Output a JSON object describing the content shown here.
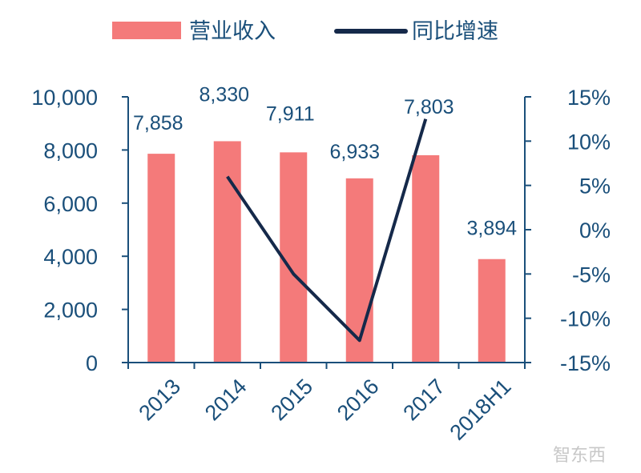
{
  "chart_data": {
    "type": "bar",
    "categories": [
      "2013",
      "2014",
      "2015",
      "2016",
      "2017",
      "2018H1"
    ],
    "series": [
      {
        "name": "营业收入",
        "type": "bar",
        "axis": "left",
        "values": [
          7858,
          8330,
          7911,
          6933,
          7803,
          3894
        ],
        "labels": [
          "7,858",
          "8,330",
          "7,911",
          "6,933",
          "7,803",
          "3,894"
        ]
      },
      {
        "name": "同比增速",
        "type": "line",
        "axis": "right",
        "values": [
          null,
          6.0,
          -5.0,
          -12.5,
          12.5,
          null
        ]
      }
    ],
    "y_left": {
      "min": 0,
      "max": 10000,
      "ticks": [
        0,
        2000,
        4000,
        6000,
        8000,
        10000
      ],
      "tick_labels": [
        "0",
        "2,000",
        "4,000",
        "6,000",
        "8,000",
        "10,000"
      ]
    },
    "y_right": {
      "min": -15,
      "max": 15,
      "ticks": [
        -15,
        -10,
        -5,
        0,
        5,
        10,
        15
      ],
      "tick_labels": [
        "-15%",
        "-10%",
        "-5%",
        "0%",
        "5%",
        "10%",
        "15%"
      ]
    },
    "grid": false,
    "legend": "top",
    "colors": {
      "bar": "#f47a7a",
      "line": "#15294a",
      "axis": "#1a4f7a",
      "text": "#1a4f7a"
    }
  },
  "watermark": "智东西"
}
